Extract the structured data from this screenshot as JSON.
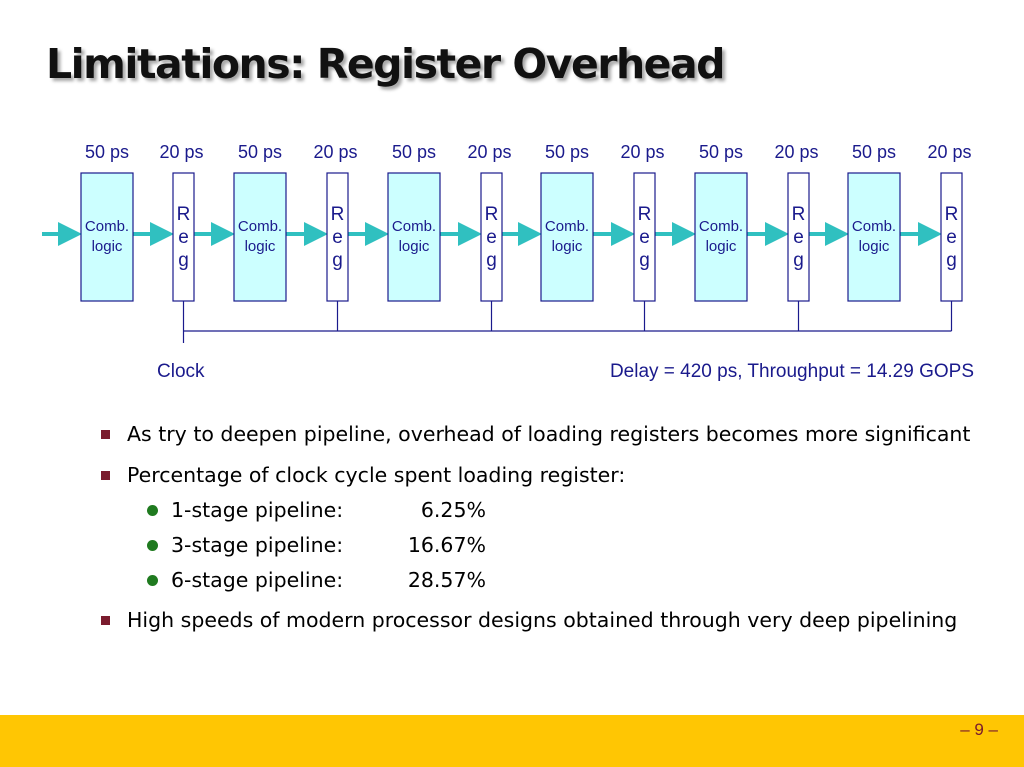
{
  "slide": {
    "title": "Limitations: Register Overhead",
    "page_number": "– 9 –"
  },
  "diagram": {
    "stage_delays": [
      "50 ps",
      "20 ps",
      "50 ps",
      "20 ps",
      "50 ps",
      "20 ps",
      "50 ps",
      "20 ps",
      "50 ps",
      "20 ps",
      "50 ps",
      "20 ps"
    ],
    "comb_label_line1": "Comb.",
    "comb_label_line2": "logic",
    "reg_letters": [
      "R",
      "e",
      "g"
    ],
    "clock_label": "Clock",
    "summary": "Delay = 420 ps, Throughput = 14.29 GOPS",
    "colors": {
      "text": "#1a1a8c",
      "box_fill": "#ccffff",
      "box_stroke": "#1a1a8c",
      "arrow": "#30c0c0"
    }
  },
  "bullets": [
    {
      "text": "As try to deepen pipeline, overhead of loading registers becomes more significant"
    },
    {
      "text": "Percentage of clock cycle spent loading register:",
      "sub": [
        {
          "label": "1-stage pipeline:",
          "value": "6.25%"
        },
        {
          "label": "3-stage pipeline:",
          "value": "16.67%"
        },
        {
          "label": "6-stage pipeline:",
          "value": "28.57%"
        }
      ]
    },
    {
      "text": "High speeds of modern processor designs obtained through very deep pipelining"
    }
  ],
  "theme": {
    "footer_color": "#ffc603",
    "bullet_square_color": "#7a1b2d",
    "bullet_dot_color": "#1f7a1f"
  }
}
